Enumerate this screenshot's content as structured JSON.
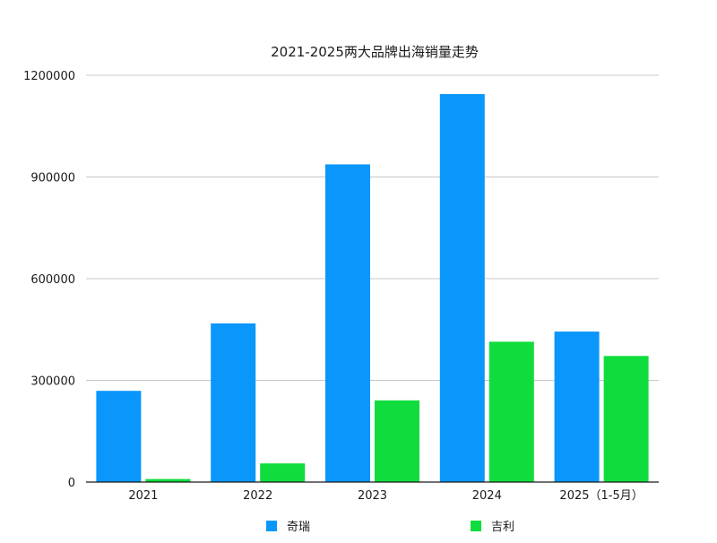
{
  "chart_data": {
    "type": "bar",
    "title": "2021-2025两大品牌出海销量走势",
    "xlabel": "",
    "ylabel": "",
    "categories": [
      "2021",
      "2022",
      "2023",
      "2024",
      "2025（1-5月）"
    ],
    "series": [
      {
        "name": "奇瑞",
        "color": "#0a97fb",
        "values": [
          269154,
          468054,
          937148,
          1144588,
          443940
        ]
      },
      {
        "name": "吉利",
        "color": "#10dd3d",
        "values": [
          9000,
          55000,
          241000,
          414000,
          372000
        ]
      }
    ],
    "ylim": [
      0,
      1200000
    ],
    "yticks": [
      0,
      300000,
      600000,
      900000,
      1200000
    ],
    "grid": true,
    "legend_position": "bottom"
  }
}
